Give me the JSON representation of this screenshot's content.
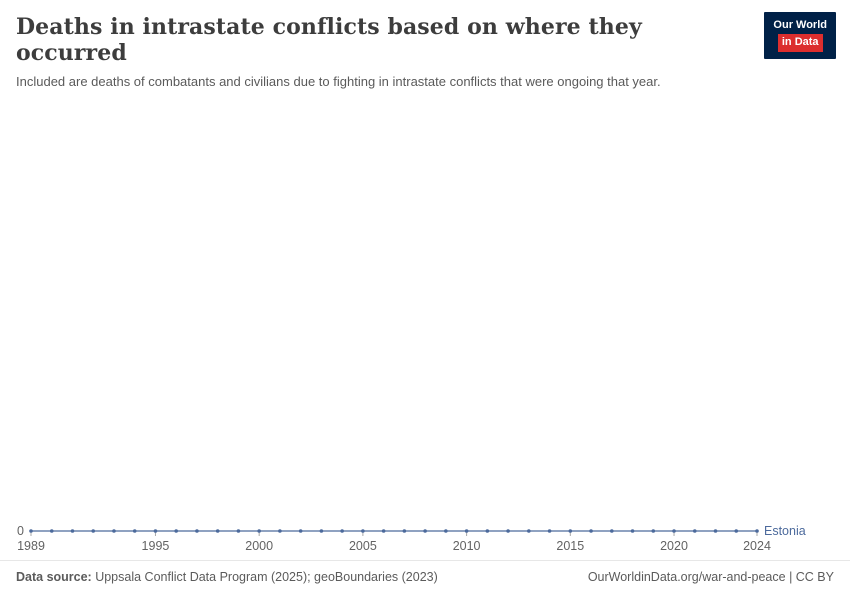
{
  "header": {
    "title": "Deaths in intrastate conflicts based on where they occurred",
    "subtitle": "Included are deaths of combatants and civilians due to fighting in intrastate conflicts that were ongoing that year.",
    "logo": {
      "line1": "Our World",
      "line2": "in Data",
      "bg_color": "#002147",
      "accent_color": "#dc2e2e"
    }
  },
  "chart_data": {
    "type": "line",
    "title": "Deaths in intrastate conflicts based on where they occurred",
    "xlabel": "",
    "ylabel": "",
    "x_range": [
      1989,
      2024
    ],
    "x_ticks": [
      1989,
      1995,
      2000,
      2005,
      2010,
      2015,
      2020,
      2024
    ],
    "y_axis_labels": [
      "0"
    ],
    "grid": false,
    "legend_position": "end-of-line",
    "axis_color": "#cfd4da",
    "tick_label_color": "#636363",
    "series": [
      {
        "name": "Estonia",
        "color": "#4c6a9c",
        "x": [
          1989,
          1990,
          1991,
          1992,
          1993,
          1994,
          1995,
          1996,
          1997,
          1998,
          1999,
          2000,
          2001,
          2002,
          2003,
          2004,
          2005,
          2006,
          2007,
          2008,
          2009,
          2010,
          2011,
          2012,
          2013,
          2014,
          2015,
          2016,
          2017,
          2018,
          2019,
          2020,
          2021,
          2022,
          2023,
          2024
        ],
        "values": [
          0,
          0,
          0,
          0,
          0,
          0,
          0,
          0,
          0,
          0,
          0,
          0,
          0,
          0,
          0,
          0,
          0,
          0,
          0,
          0,
          0,
          0,
          0,
          0,
          0,
          0,
          0,
          0,
          0,
          0,
          0,
          0,
          0,
          0,
          0,
          0
        ]
      }
    ]
  },
  "footer": {
    "source_label": "Data source:",
    "source_text": " Uppsala Conflict Data Program (2025); geoBoundaries (2023)",
    "credit": "OurWorldinData.org/war-and-peace | CC BY"
  }
}
